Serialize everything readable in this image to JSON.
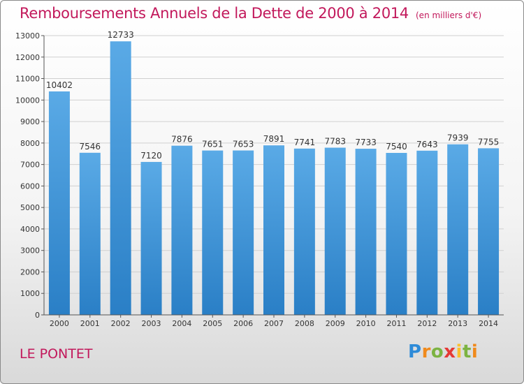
{
  "header": {
    "title": "Remboursements Annuels de la Dette de 2000 à 2014",
    "unit": "(en milliers d'€)"
  },
  "footer": {
    "place": "LE PONTET",
    "logo": "Proxiti"
  },
  "colors": {
    "bar": "#5aaae6",
    "bar_dark": "#2a7fc6",
    "title": "#c2185b",
    "grid": "#d0d0d0",
    "axis": "#555555"
  },
  "chart_data": {
    "type": "bar",
    "categories": [
      "2000",
      "2001",
      "2002",
      "2003",
      "2004",
      "2005",
      "2006",
      "2007",
      "2008",
      "2009",
      "2010",
      "2011",
      "2012",
      "2013",
      "2014"
    ],
    "values": [
      10402,
      7546,
      12733,
      7120,
      7876,
      7651,
      7653,
      7891,
      7741,
      7783,
      7733,
      7540,
      7643,
      7939,
      7755
    ],
    "ylim": [
      0,
      13000
    ],
    "yticks": [
      0,
      1000,
      2000,
      3000,
      4000,
      5000,
      6000,
      7000,
      8000,
      9000,
      10000,
      11000,
      12000,
      13000
    ],
    "grid": true,
    "data_labels": true
  }
}
